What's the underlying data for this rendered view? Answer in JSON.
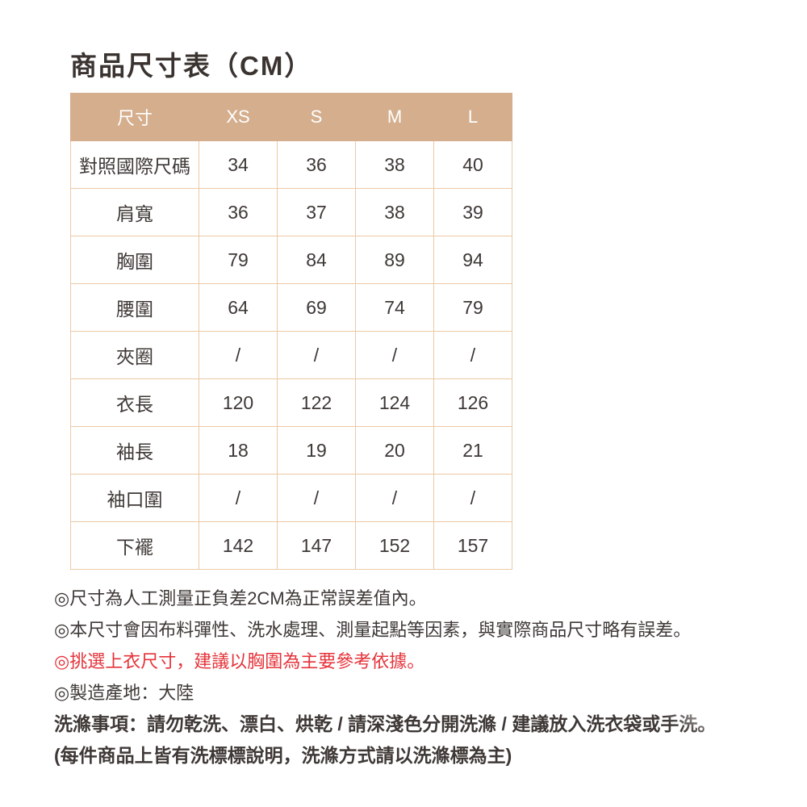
{
  "page": {
    "title": "商品尺寸表（CM）"
  },
  "size_table": {
    "header": {
      "label": "尺寸",
      "sizes": [
        "XS",
        "S",
        "M",
        "L"
      ]
    },
    "rows": [
      {
        "label": "對照國際尺碼",
        "values": [
          "34",
          "36",
          "38",
          "40"
        ]
      },
      {
        "label": "肩寬",
        "values": [
          "36",
          "37",
          "38",
          "39"
        ]
      },
      {
        "label": "胸圍",
        "values": [
          "79",
          "84",
          "89",
          "94"
        ]
      },
      {
        "label": "腰圍",
        "values": [
          "64",
          "69",
          "74",
          "79"
        ]
      },
      {
        "label": "夾圈",
        "values": [
          "/",
          "/",
          "/",
          "/"
        ]
      },
      {
        "label": "衣長",
        "values": [
          "120",
          "122",
          "124",
          "126"
        ]
      },
      {
        "label": "袖長",
        "values": [
          "18",
          "19",
          "20",
          "21"
        ]
      },
      {
        "label": "袖口圍",
        "values": [
          "/",
          "/",
          "/",
          "/"
        ]
      },
      {
        "label": "下襬",
        "values": [
          "142",
          "147",
          "152",
          "157"
        ]
      }
    ]
  },
  "notes": [
    {
      "text": "◎尺寸為人工測量正負差2CM為正常誤差值內。",
      "emphasis": "none"
    },
    {
      "text": "◎本尺寸會因布料彈性、洗水處理、測量起點等因素，與實際商品尺寸略有誤差。",
      "emphasis": "none"
    },
    {
      "text": "◎挑選上衣尺寸，建議以胸圍為主要參考依據。",
      "emphasis": "red"
    },
    {
      "text": "◎製造產地：大陸",
      "emphasis": "none"
    }
  ],
  "care": {
    "line1": "洗滌事項：請勿乾洗、漂白、烘乾 / 請深淺色分開洗滌 / 建議放入洗衣袋或手洗。",
    "line2": "(每件商品上皆有洗標標說明，洗滌方式請以洗滌標為主)"
  },
  "colors": {
    "header_bg": "#d4ae8d",
    "border": "#ecc9a4",
    "text": "#3e3836",
    "header_text": "#ffffff",
    "accent_red": "#e5333a"
  }
}
